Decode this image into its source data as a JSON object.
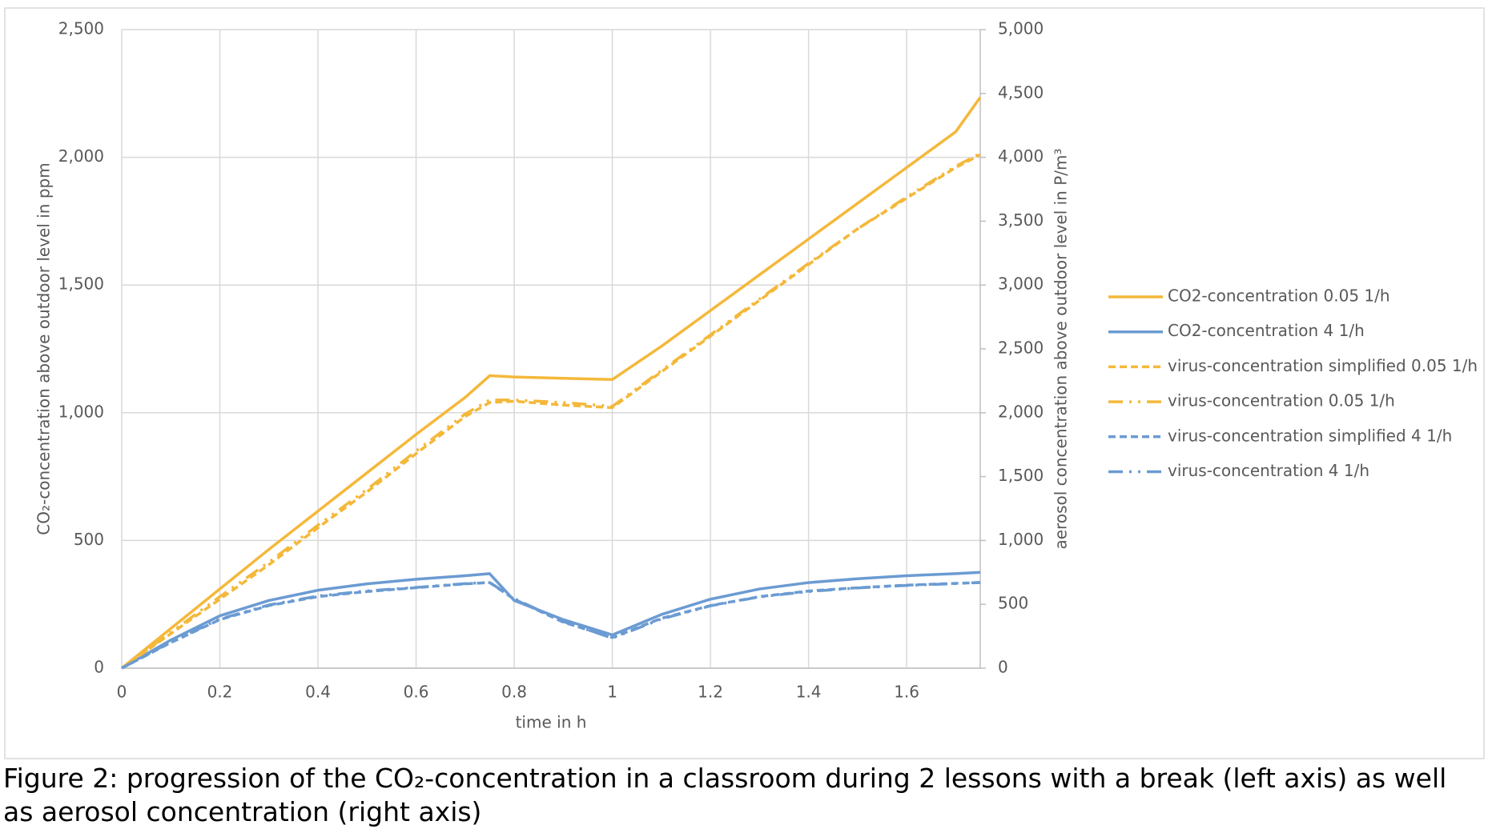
{
  "chart_data": {
    "type": "line",
    "xlabel": "time in h",
    "ylabel": "CO₂-concentration above outdoor level in ppm",
    "y2label": "aerosol concentration above outdoor level in P/m³",
    "caption": "Figure 2: progression of the CO₂-concentration in a classroom during 2 lessons with a break (left axis) as well as aerosol concentration (right axis)",
    "x": [
      0,
      0.1,
      0.2,
      0.3,
      0.4,
      0.5,
      0.6,
      0.7,
      0.75,
      0.8,
      0.9,
      1.0,
      1.1,
      1.2,
      1.3,
      1.4,
      1.5,
      1.6,
      1.7,
      1.75
    ],
    "xlim": [
      0,
      1.75
    ],
    "xticks": [
      0,
      0.2,
      0.4,
      0.6,
      0.8,
      1,
      1.2,
      1.4,
      1.6
    ],
    "ylim": [
      0,
      2500
    ],
    "yticks": [
      0,
      500,
      {
        "value": 1000,
        "label": "1,000"
      },
      {
        "value": 1500,
        "label": "1,500"
      },
      {
        "value": 2000,
        "label": "2,000"
      },
      {
        "value": 2500,
        "label": "2,500"
      }
    ],
    "y2lim": [
      0,
      5000
    ],
    "y2ticks": [
      0,
      500,
      {
        "value": 1000,
        "label": "1,000"
      },
      {
        "value": 1500,
        "label": "1,500"
      },
      {
        "value": 2000,
        "label": "2,000"
      },
      {
        "value": 2500,
        "label": "2,500"
      },
      {
        "value": 3000,
        "label": "3,000"
      },
      {
        "value": 3500,
        "label": "3,500"
      },
      {
        "value": 4000,
        "label": "4,000"
      },
      {
        "value": 4500,
        "label": "4,500"
      },
      {
        "value": 5000,
        "label": "5,000"
      }
    ],
    "grid": true,
    "legend": "right",
    "series": [
      {
        "name": "CO2-concentration 0.05 1/h",
        "color": "#f4b83a",
        "dash": "solid",
        "values": [
          0,
          155,
          310,
          465,
          615,
          765,
          915,
          1060,
          1145,
          1140,
          1135,
          1130,
          1260,
          1400,
          1540,
          1680,
          1820,
          1960,
          2100,
          2235
        ]
      },
      {
        "name": "CO2-concentration 4 1/h",
        "color": "#6b9bd2",
        "dash": "solid",
        "values": [
          0,
          110,
          205,
          265,
          305,
          330,
          348,
          362,
          370,
          265,
          190,
          130,
          210,
          270,
          310,
          335,
          350,
          362,
          370,
          375
        ]
      },
      {
        "name": "virus-concentration simplified 0.05 1/h",
        "color": "#f4b83a",
        "dash": "dashed",
        "axis": "y2",
        "values": [
          0,
          270,
          540,
          810,
          1100,
          1380,
          1680,
          1970,
          2080,
          2090,
          2060,
          2040,
          2320,
          2600,
          2880,
          3160,
          3440,
          3680,
          3920,
          4020
        ]
      },
      {
        "name": "virus-concentration 0.05 1/h",
        "color": "#f4b83a",
        "dash": "dashdotdot",
        "axis": "y2",
        "values": [
          0,
          280,
          560,
          830,
          1120,
          1400,
          1700,
          1990,
          2100,
          2100,
          2080,
          2050,
          2330,
          2610,
          2890,
          3170,
          3440,
          3690,
          3930,
          4030
        ]
      },
      {
        "name": "virus-concentration simplified 4 1/h",
        "color": "#6b9bd2",
        "dash": "dashed",
        "axis": "y2",
        "values": [
          0,
          200,
          380,
          490,
          560,
          600,
          630,
          660,
          670,
          540,
          360,
          240,
          390,
          490,
          560,
          604,
          630,
          650,
          664,
          670
        ]
      },
      {
        "name": "virus-concentration 4 1/h",
        "color": "#6b9bd2",
        "dash": "dashdotdot",
        "axis": "y2",
        "values": [
          0,
          205,
          385,
          495,
          565,
          605,
          632,
          662,
          672,
          545,
          365,
          235,
          385,
          488,
          558,
          600,
          628,
          648,
          662,
          672
        ]
      }
    ]
  }
}
